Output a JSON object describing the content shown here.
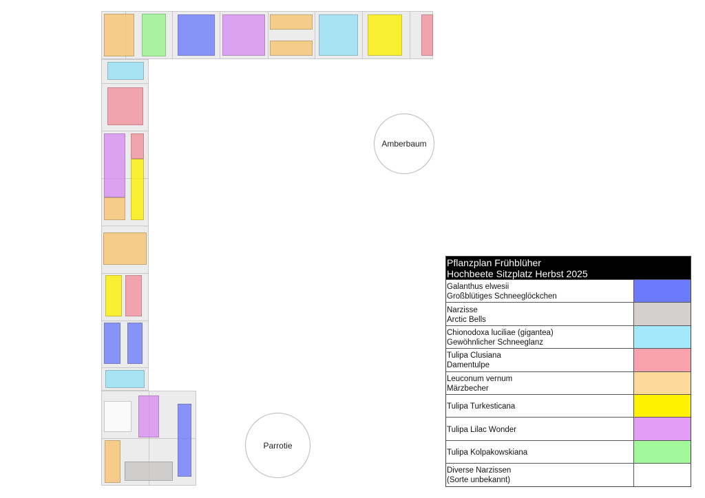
{
  "trees": {
    "amberbaum": "Amberbaum",
    "parrotie": "Parrotie"
  },
  "legend": {
    "title_line1": "Pflanzplan Frühblüher",
    "title_line2": "Hochbeete Sitzplatz Herbst 2025",
    "items": [
      {
        "line1": "Galanthus elwesii",
        "line2": "Großblütiges Schneeglöckchen",
        "color": "#6b7bfb"
      },
      {
        "line1": "Narzisse",
        "line2": "Arctic Bells",
        "color": "#d3d0ce"
      },
      {
        "line1": "Chionodoxa luciliae (gigantea)",
        "line2": "Gewöhnlicher Schneeglanz",
        "color": "#a3e9fb"
      },
      {
        "line1": "Tulipa Clusiana",
        "line2": "Damentulpe",
        "color": "#f9a1ad"
      },
      {
        "line1": "Leuconum vernum",
        "line2": "Märzbecher",
        "color": "#fdd99a"
      },
      {
        "line1": "Tulipa Turkesticana",
        "line2": "",
        "color": "#fff200"
      },
      {
        "line1": "Tulipa Lilac Wonder",
        "line2": "",
        "color": "#e29df7"
      },
      {
        "line1": "Tulipa Kolpakowskiana",
        "line2": "",
        "color": "#a2f99a"
      },
      {
        "line1": "Diverse Narzissen",
        "line2": "(Sorte unbekannt)",
        "color": "#ffffff"
      }
    ]
  },
  "colors": {
    "galanthus": "#6b7bfb",
    "narzisse": "#c9c6c4",
    "chionodoxa": "#96e1f6",
    "clusiana": "#f4909d",
    "leuconum": "#f8c46e",
    "turkesticana": "#fff200",
    "lilac": "#d88cf3",
    "kolpakowskiana": "#96f48c",
    "diverse": "#ffffff"
  }
}
